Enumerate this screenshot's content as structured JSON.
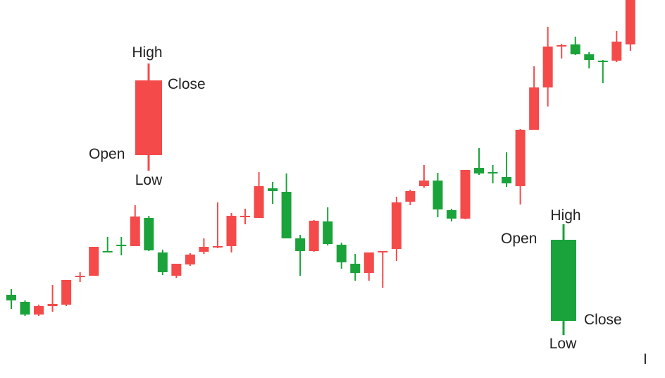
{
  "colors": {
    "up": "#1aa33a",
    "down": "#f44a4a",
    "text": "#222222",
    "background": "#ffffff"
  },
  "chart_data": {
    "type": "candlestick",
    "title": "",
    "xlabel": "",
    "ylabel": "",
    "axes_visible": false,
    "grid": false,
    "ylim": [
      0,
      536
    ],
    "candles": [
      {
        "o": 118,
        "h": 126,
        "l": 98,
        "c": 110,
        "dir": "green"
      },
      {
        "o": 108,
        "h": 110,
        "l": 88,
        "c": 90,
        "dir": "green"
      },
      {
        "o": 90,
        "h": 104,
        "l": 88,
        "c": 102,
        "dir": "red"
      },
      {
        "o": 102,
        "h": 132,
        "l": 94,
        "c": 105,
        "dir": "red"
      },
      {
        "o": 104,
        "h": 139,
        "l": 102,
        "c": 139,
        "dir": "red"
      },
      {
        "o": 143,
        "h": 150,
        "l": 136,
        "c": 145,
        "dir": "red"
      },
      {
        "o": 145,
        "h": 186,
        "l": 145,
        "c": 186,
        "dir": "red"
      },
      {
        "o": 180,
        "h": 200,
        "l": 178,
        "c": 180,
        "dir": "green"
      },
      {
        "o": 189,
        "h": 200,
        "l": 174,
        "c": 188,
        "dir": "green"
      },
      {
        "o": 187,
        "h": 245,
        "l": 187,
        "c": 229,
        "dir": "red"
      },
      {
        "o": 227,
        "h": 230,
        "l": 180,
        "c": 181,
        "dir": "green"
      },
      {
        "o": 178,
        "h": 182,
        "l": 146,
        "c": 150,
        "dir": "green"
      },
      {
        "o": 145,
        "h": 162,
        "l": 142,
        "c": 162,
        "dir": "red"
      },
      {
        "o": 161,
        "h": 177,
        "l": 159,
        "c": 175,
        "dir": "red"
      },
      {
        "o": 179,
        "h": 198,
        "l": 176,
        "c": 186,
        "dir": "red"
      },
      {
        "o": 185,
        "h": 249,
        "l": 184,
        "c": 187,
        "dir": "red"
      },
      {
        "o": 187,
        "h": 234,
        "l": 178,
        "c": 230,
        "dir": "red"
      },
      {
        "o": 230,
        "h": 240,
        "l": 218,
        "c": 230,
        "dir": "red"
      },
      {
        "o": 227,
        "h": 292,
        "l": 227,
        "c": 272,
        "dir": "red"
      },
      {
        "o": 269,
        "h": 278,
        "l": 247,
        "c": 265,
        "dir": "green"
      },
      {
        "o": 264,
        "h": 290,
        "l": 199,
        "c": 198,
        "dir": "green"
      },
      {
        "o": 198,
        "h": 203,
        "l": 145,
        "c": 180,
        "dir": "green"
      },
      {
        "o": 180,
        "h": 224,
        "l": 179,
        "c": 223,
        "dir": "red"
      },
      {
        "o": 222,
        "h": 242,
        "l": 188,
        "c": 190,
        "dir": "green"
      },
      {
        "o": 189,
        "h": 192,
        "l": 155,
        "c": 164,
        "dir": "green"
      },
      {
        "o": 162,
        "h": 176,
        "l": 138,
        "c": 149,
        "dir": "green"
      },
      {
        "o": 149,
        "h": 178,
        "l": 138,
        "c": 178,
        "dir": "red"
      },
      {
        "o": 180,
        "h": 180,
        "l": 128,
        "c": 180,
        "dir": "red"
      },
      {
        "o": 183,
        "h": 257,
        "l": 166,
        "c": 249,
        "dir": "red"
      },
      {
        "o": 250,
        "h": 267,
        "l": 245,
        "c": 265,
        "dir": "red"
      },
      {
        "o": 272,
        "h": 302,
        "l": 270,
        "c": 280,
        "dir": "red"
      },
      {
        "o": 280,
        "h": 291,
        "l": 228,
        "c": 239,
        "dir": "green"
      },
      {
        "o": 238,
        "h": 240,
        "l": 222,
        "c": 226,
        "dir": "green"
      },
      {
        "o": 226,
        "h": 295,
        "l": 225,
        "c": 295,
        "dir": "red"
      },
      {
        "o": 298,
        "h": 326,
        "l": 288,
        "c": 290,
        "dir": "green"
      },
      {
        "o": 292,
        "h": 302,
        "l": 276,
        "c": 290,
        "dir": "green"
      },
      {
        "o": 285,
        "h": 320,
        "l": 271,
        "c": 276,
        "dir": "green"
      },
      {
        "o": 272,
        "h": 353,
        "l": 246,
        "c": 352,
        "dir": "red"
      },
      {
        "o": 352,
        "h": 442,
        "l": 352,
        "c": 412,
        "dir": "red"
      },
      {
        "o": 412,
        "h": 498,
        "l": 385,
        "c": 470,
        "dir": "red"
      },
      {
        "o": 471,
        "h": 474,
        "l": 453,
        "c": 472,
        "dir": "red"
      },
      {
        "o": 473,
        "h": 484,
        "l": 458,
        "c": 459,
        "dir": "green"
      },
      {
        "o": 459,
        "h": 462,
        "l": 439,
        "c": 451,
        "dir": "green"
      },
      {
        "o": 450,
        "h": 451,
        "l": 418,
        "c": 449,
        "dir": "green"
      },
      {
        "o": 450,
        "h": 492,
        "l": 448,
        "c": 477,
        "dir": "red"
      },
      {
        "o": 473,
        "h": 536,
        "l": 464,
        "c": 536,
        "dir": "red"
      }
    ],
    "legend": {
      "bearish": {
        "high": "High",
        "close": "Close",
        "open": "Open",
        "low": "Low",
        "o": 422,
        "h": 446,
        "l": 294,
        "c": 316
      },
      "bullish": {
        "high": "High",
        "open": "Open",
        "close": "Close",
        "low": "Low",
        "o": 196,
        "h": 218,
        "l": 61,
        "c": 81
      }
    },
    "annotations": [
      "I"
    ]
  }
}
